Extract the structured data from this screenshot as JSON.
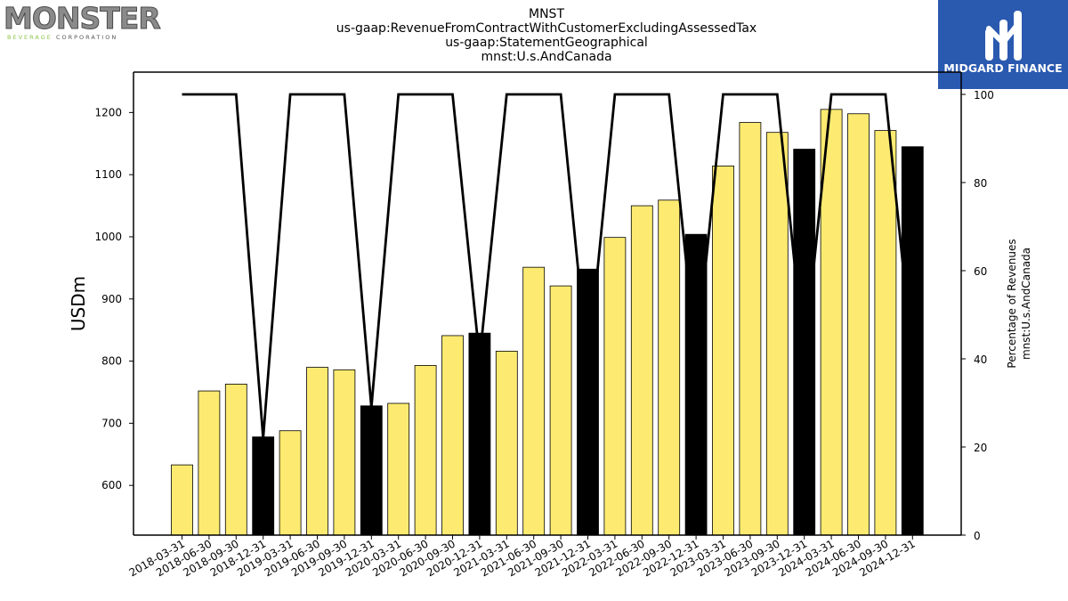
{
  "logos": {
    "left": {
      "main": "MONSTER",
      "sub_accent": "BEVERAGE",
      "sub_rest": "CORPORATION"
    },
    "right": {
      "name": "MIDGARD FINANCE",
      "background": "#2a59b0"
    }
  },
  "chart_data": {
    "type": "bar",
    "title_lines": [
      "MNST",
      "us-gaap:RevenueFromContractWithCustomerExcludingAssessedTax",
      "us-gaap:StatementGeographical",
      "mnst:U.s.AndCanada"
    ],
    "ylabel": "USDm",
    "y2label_lines": [
      "Percentage of Revenues",
      "mnst:U.s.AndCanada"
    ],
    "ylim": [
      520,
      1265
    ],
    "y_ticks": [
      600,
      700,
      800,
      900,
      1000,
      1100,
      1200
    ],
    "y2lim": [
      0,
      100
    ],
    "y2_ticks": [
      0,
      20,
      40,
      60,
      80,
      100
    ],
    "categories": [
      "2018-03-31",
      "2018-06-30",
      "2018-09-30",
      "2018-12-31",
      "2019-03-31",
      "2019-06-30",
      "2019-09-30",
      "2019-12-31",
      "2020-03-31",
      "2020-06-30",
      "2020-09-30",
      "2020-12-31",
      "2021-03-31",
      "2021-06-30",
      "2021-09-30",
      "2021-12-31",
      "2022-03-31",
      "2022-06-30",
      "2022-09-30",
      "2022-12-31",
      "2023-03-31",
      "2023-06-30",
      "2023-09-30",
      "2023-12-31",
      "2024-03-31",
      "2024-06-30",
      "2024-09-30",
      "2024-12-31"
    ],
    "series": [
      {
        "type": "bar",
        "axis": "left",
        "values": [
          633,
          752,
          763,
          678,
          688,
          790,
          786,
          728,
          732,
          793,
          841,
          845,
          816,
          951,
          921,
          948,
          999,
          1050,
          1059,
          1004,
          1114,
          1184,
          1168,
          1141,
          1205,
          1198,
          1171,
          1145
        ],
        "colors": [
          "#fdeb71",
          "#fdeb71",
          "#fdeb71",
          "#000000",
          "#fdeb71",
          "#fdeb71",
          "#fdeb71",
          "#000000",
          "#fdeb71",
          "#fdeb71",
          "#fdeb71",
          "#000000",
          "#fdeb71",
          "#fdeb71",
          "#fdeb71",
          "#000000",
          "#fdeb71",
          "#fdeb71",
          "#fdeb71",
          "#000000",
          "#fdeb71",
          "#fdeb71",
          "#fdeb71",
          "#000000",
          "#fdeb71",
          "#fdeb71",
          "#fdeb71",
          "#000000"
        ]
      },
      {
        "type": "line",
        "axis": "right",
        "color": "#000000",
        "values": [
          100,
          100,
          100,
          22,
          100,
          100,
          100,
          29,
          100,
          100,
          100,
          40,
          100,
          100,
          100,
          38,
          100,
          100,
          100,
          40,
          100,
          100,
          100,
          40,
          100,
          100,
          100,
          40
        ]
      }
    ],
    "grid": false,
    "legend": "none"
  }
}
